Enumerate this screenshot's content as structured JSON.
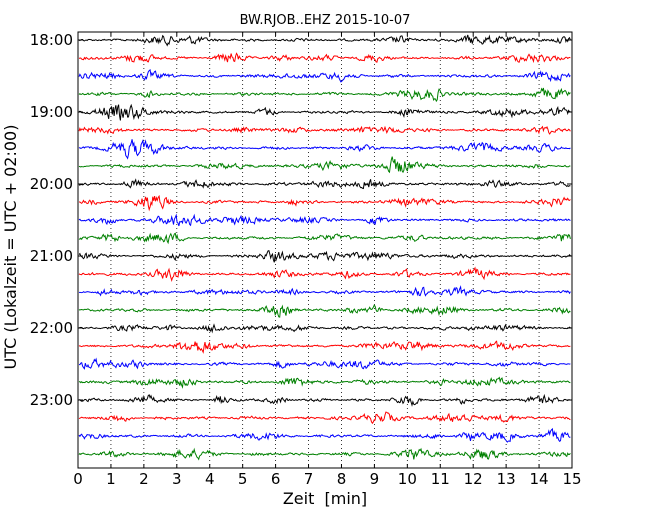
{
  "chart_data": {
    "type": "line",
    "title": "BW.RJOB..EHZ 2015-10-07",
    "xlabel": "Zeit  [min]",
    "ylabel": "UTC (Lokalzeit = UTC + 02:00)",
    "xlim": [
      0,
      15
    ],
    "x_ticks": [
      "0",
      "1",
      "2",
      "3",
      "4",
      "5",
      "6",
      "7",
      "8",
      "9",
      "10",
      "11",
      "12",
      "13",
      "14",
      "15"
    ],
    "y_tick_labels": [
      "18:00",
      "19:00",
      "20:00",
      "21:00",
      "22:00",
      "23:00"
    ],
    "grid": "vertical dotted",
    "trace_colors": [
      "#000000",
      "#ff0000",
      "#0000ff",
      "#008000"
    ],
    "traces": [
      {
        "start": "18:00"
      },
      {
        "start": "18:15"
      },
      {
        "start": "18:30"
      },
      {
        "start": "18:45"
      },
      {
        "start": "19:00"
      },
      {
        "start": "19:15"
      },
      {
        "start": "19:30"
      },
      {
        "start": "19:45"
      },
      {
        "start": "20:00"
      },
      {
        "start": "20:15"
      },
      {
        "start": "20:30"
      },
      {
        "start": "20:45"
      },
      {
        "start": "21:00"
      },
      {
        "start": "21:15"
      },
      {
        "start": "21:30"
      },
      {
        "start": "21:45"
      },
      {
        "start": "22:00"
      },
      {
        "start": "22:15"
      },
      {
        "start": "22:30"
      },
      {
        "start": "22:45"
      },
      {
        "start": "23:00"
      },
      {
        "start": "23:15"
      },
      {
        "start": "23:30"
      },
      {
        "start": "23:45"
      }
    ]
  }
}
